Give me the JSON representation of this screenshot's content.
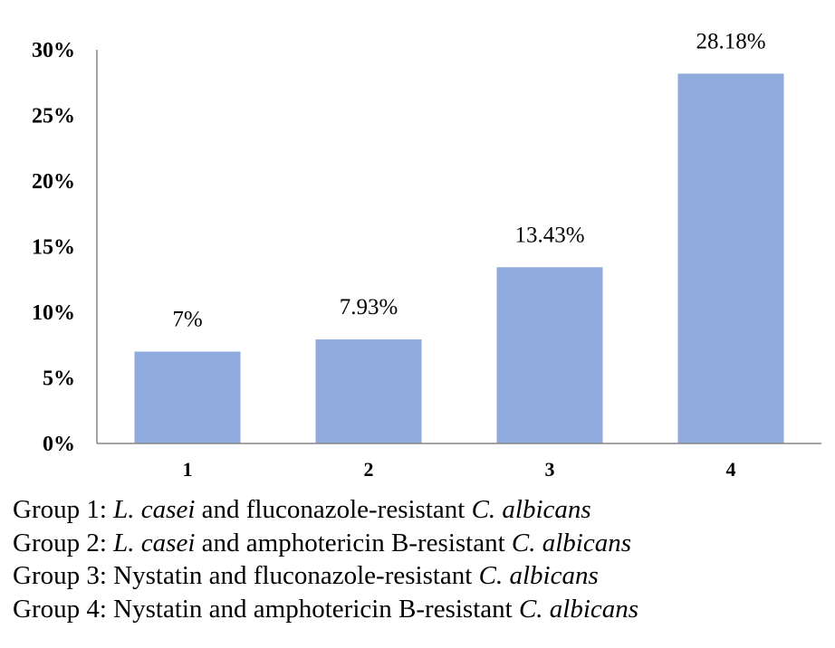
{
  "chart_data": {
    "type": "bar",
    "categories": [
      "1",
      "2",
      "3",
      "4"
    ],
    "values": [
      7,
      7.93,
      13.43,
      28.18
    ],
    "data_labels": [
      "7%",
      "7.93%",
      "13.43%",
      "28.18%"
    ],
    "ylim": [
      0,
      30
    ],
    "yticks": [
      0,
      5,
      10,
      15,
      20,
      25,
      30
    ],
    "ytick_labels": [
      "0%",
      "5%",
      "10%",
      "15%",
      "20%",
      "25%",
      "30%"
    ],
    "bar_color": "#8faadc",
    "axis_color": "#868686",
    "grid": false,
    "title": "",
    "xlabel": "",
    "ylabel": ""
  },
  "legend": [
    {
      "parts": [
        {
          "text": "Group 1: ",
          "italic": false
        },
        {
          "text": "L. casei",
          "italic": true
        },
        {
          "text": " and fluconazole-resistant ",
          "italic": false
        },
        {
          "text": "C. albicans",
          "italic": true
        }
      ]
    },
    {
      "parts": [
        {
          "text": "Group 2: ",
          "italic": false
        },
        {
          "text": "L. casei",
          "italic": true
        },
        {
          "text": " and amphotericin B-resistant ",
          "italic": false
        },
        {
          "text": "C. albicans",
          "italic": true
        }
      ]
    },
    {
      "parts": [
        {
          "text": "Group 3: Nystatin and fluconazole-resistant ",
          "italic": false
        },
        {
          "text": "C. albicans",
          "italic": true
        }
      ]
    },
    {
      "parts": [
        {
          "text": "Group 4: Nystatin and amphotericin B-resistant ",
          "italic": false
        },
        {
          "text": "C. albicans",
          "italic": true
        }
      ]
    }
  ]
}
